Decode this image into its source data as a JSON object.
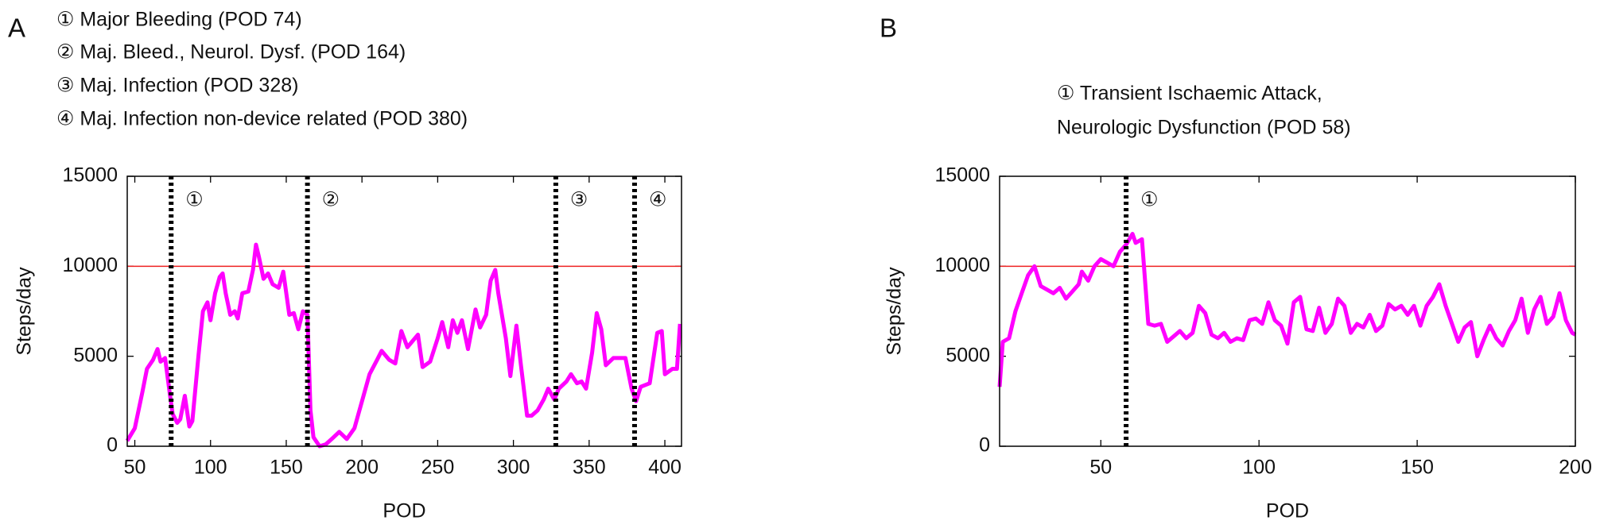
{
  "chart_data": [
    {
      "type": "line",
      "panel": "A",
      "annotations": [
        "① Major Bleeding (POD 74)",
        "② Maj. Bleed., Neurol. Dysf. (POD 164)",
        "③ Maj. Infection (POD 328)",
        "④ Maj. Infection non-device related (POD 380)"
      ],
      "xlabel": "POD",
      "ylabel": "Steps/day",
      "xlim": [
        45,
        411
      ],
      "ylim": [
        0,
        15000
      ],
      "xticks": [
        50,
        100,
        150,
        200,
        250,
        300,
        350,
        400
      ],
      "yticks": [
        0,
        5000,
        10000,
        15000
      ],
      "hline": 10000,
      "hline_color": "#ee2222",
      "events": [
        {
          "x": 74,
          "label": "①"
        },
        {
          "x": 164,
          "label": "②"
        },
        {
          "x": 328,
          "label": "③"
        },
        {
          "x": 380,
          "label": "④"
        }
      ],
      "x": [
        45,
        50,
        55,
        58,
        62,
        65,
        67,
        70,
        73,
        75,
        78,
        80,
        83,
        86,
        88,
        92,
        95,
        98,
        100,
        103,
        106,
        108,
        110,
        113,
        116,
        118,
        121,
        125,
        128,
        130,
        132,
        135,
        138,
        141,
        145,
        148,
        152,
        155,
        158,
        161,
        164,
        166,
        168,
        172,
        176,
        180,
        185,
        190,
        195,
        200,
        205,
        210,
        213,
        218,
        222,
        226,
        230,
        233,
        237,
        240,
        245,
        250,
        253,
        257,
        260,
        263,
        266,
        270,
        275,
        278,
        282,
        285,
        288,
        290,
        295,
        298,
        302,
        305,
        309,
        312,
        316,
        320,
        323,
        327,
        330,
        335,
        338,
        342,
        345,
        348,
        352,
        355,
        358,
        361,
        366,
        374,
        378,
        381,
        384,
        390,
        395,
        398,
        400,
        405,
        408,
        410
      ],
      "series": [
        {
          "name": "Steps/day",
          "color": "#ff00ff",
          "values": [
            300,
            1000,
            3000,
            4300,
            4800,
            5400,
            4700,
            4900,
            3000,
            1800,
            1300,
            1500,
            2800,
            1100,
            1400,
            5000,
            7500,
            8000,
            7000,
            8500,
            9400,
            9600,
            8500,
            7300,
            7500,
            7100,
            8500,
            8600,
            9800,
            11200,
            10500,
            9300,
            9600,
            9000,
            8800,
            9700,
            7300,
            7400,
            6500,
            7500,
            7300,
            2000,
            500,
            0,
            100,
            400,
            800,
            400,
            1000,
            2500,
            4000,
            4800,
            5300,
            4800,
            4600,
            6400,
            5500,
            5800,
            6200,
            4400,
            4700,
            6000,
            6900,
            5500,
            7000,
            6300,
            7000,
            5400,
            7600,
            6600,
            7300,
            9200,
            9800,
            8500,
            6000,
            3900,
            6700,
            4500,
            1700,
            1700,
            2000,
            2600,
            3200,
            2600,
            3200,
            3600,
            4000,
            3500,
            3600,
            3200,
            5200,
            7400,
            6500,
            4500,
            4900,
            4900,
            3200,
            2500,
            3300,
            3500,
            6300,
            6400,
            4000,
            4300,
            4300,
            6800
          ]
        }
      ]
    },
    {
      "type": "line",
      "panel": "B",
      "annotations": [
        "① Transient Ischaemic Attack,",
        "Neurologic Dysfunction (POD 58)"
      ],
      "xlabel": "POD",
      "ylabel": "Steps/day",
      "xlim": [
        18,
        200
      ],
      "ylim": [
        0,
        15000
      ],
      "xticks": [
        50,
        100,
        150,
        200
      ],
      "yticks": [
        0,
        5000,
        10000,
        15000
      ],
      "hline": 10000,
      "hline_color": "#ee2222",
      "events": [
        {
          "x": 58,
          "label": "①"
        }
      ],
      "x": [
        18,
        19,
        21,
        23,
        25,
        27,
        29,
        31,
        33,
        35,
        37,
        39,
        41,
        43,
        44,
        46,
        48,
        50,
        52,
        54,
        56,
        58,
        60,
        61,
        63,
        65,
        67,
        69,
        71,
        73,
        75,
        77,
        79,
        81,
        83,
        85,
        87,
        89,
        91,
        93,
        95,
        97,
        99,
        101,
        103,
        105,
        107,
        109,
        111,
        113,
        115,
        117,
        119,
        121,
        123,
        125,
        127,
        129,
        131,
        133,
        135,
        137,
        139,
        141,
        143,
        145,
        147,
        149,
        151,
        153,
        155,
        157,
        159,
        161,
        163,
        165,
        167,
        169,
        171,
        173,
        175,
        177,
        179,
        181,
        183,
        185,
        187,
        189,
        191,
        193,
        195,
        197,
        199,
        200
      ],
      "series": [
        {
          "name": "Steps/day",
          "color": "#ff00ff",
          "values": [
            3300,
            5800,
            6000,
            7500,
            8500,
            9500,
            10000,
            8900,
            8700,
            8500,
            8800,
            8200,
            8600,
            9000,
            9700,
            9200,
            10000,
            10400,
            10200,
            10000,
            10800,
            11200,
            11800,
            11300,
            11500,
            6800,
            6700,
            6800,
            5800,
            6100,
            6400,
            6000,
            6300,
            7800,
            7400,
            6200,
            6000,
            6300,
            5800,
            6000,
            5900,
            7000,
            7100,
            6800,
            8000,
            7000,
            6700,
            5700,
            8000,
            8300,
            6500,
            6400,
            7700,
            6300,
            6800,
            8200,
            7800,
            6300,
            6800,
            6600,
            7300,
            6400,
            6700,
            7900,
            7600,
            7800,
            7300,
            7800,
            6700,
            7800,
            8300,
            9000,
            7800,
            6800,
            5800,
            6600,
            6900,
            5000,
            5900,
            6700,
            6000,
            5600,
            6400,
            7000,
            8200,
            6300,
            7600,
            8300,
            6800,
            7200,
            8500,
            7000,
            6300,
            6200
          ]
        }
      ]
    }
  ]
}
